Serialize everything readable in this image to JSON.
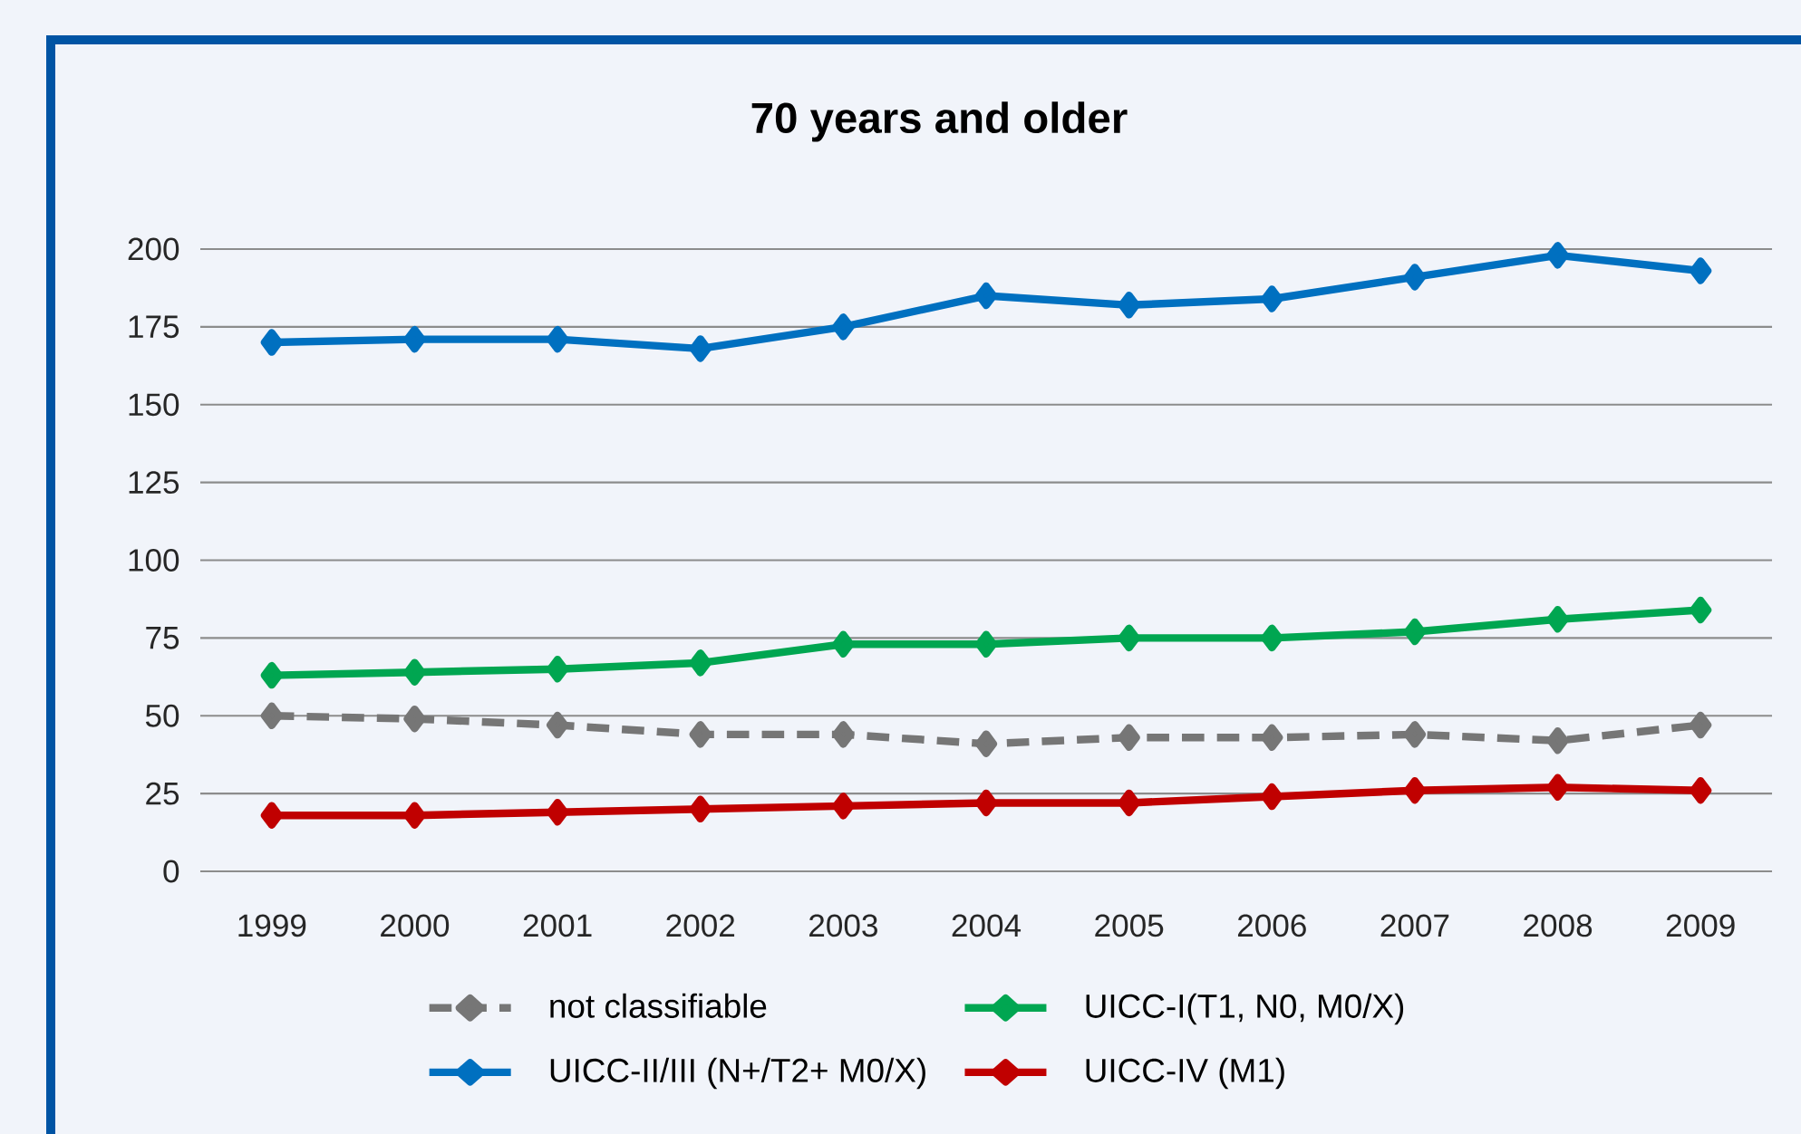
{
  "chart_data": {
    "type": "line",
    "title": "70 years and older",
    "categories": [
      "1999",
      "2000",
      "2001",
      "2002",
      "2003",
      "2004",
      "2005",
      "2006",
      "2007",
      "2008",
      "2009"
    ],
    "series": [
      {
        "name": "not classifiable",
        "color": "#767676",
        "line_style": "dashed",
        "values": [
          50,
          49,
          47,
          44,
          44,
          41,
          43,
          43,
          44,
          42,
          47
        ]
      },
      {
        "name": "UICC-I(T1, N0, M0/X)",
        "color": "#00a651",
        "values": [
          63,
          64,
          65,
          67,
          73,
          73,
          75,
          75,
          77,
          81,
          84
        ]
      },
      {
        "name": "UICC-II/III (N+/T2+ M0/X)",
        "color": "#0070c0",
        "values": [
          170,
          171,
          171,
          168,
          175,
          185,
          182,
          184,
          191,
          198,
          193
        ]
      },
      {
        "name": "UICC-IV (M1)",
        "color": "#c00000",
        "values": [
          18,
          18,
          19,
          20,
          21,
          22,
          22,
          24,
          26,
          27,
          26
        ]
      }
    ],
    "ylim": [
      0,
      200
    ],
    "yticks": [
      0,
      25,
      50,
      75,
      100,
      125,
      150,
      175,
      200
    ],
    "grid": "y",
    "legend": "bottom",
    "marker": "diamond"
  }
}
